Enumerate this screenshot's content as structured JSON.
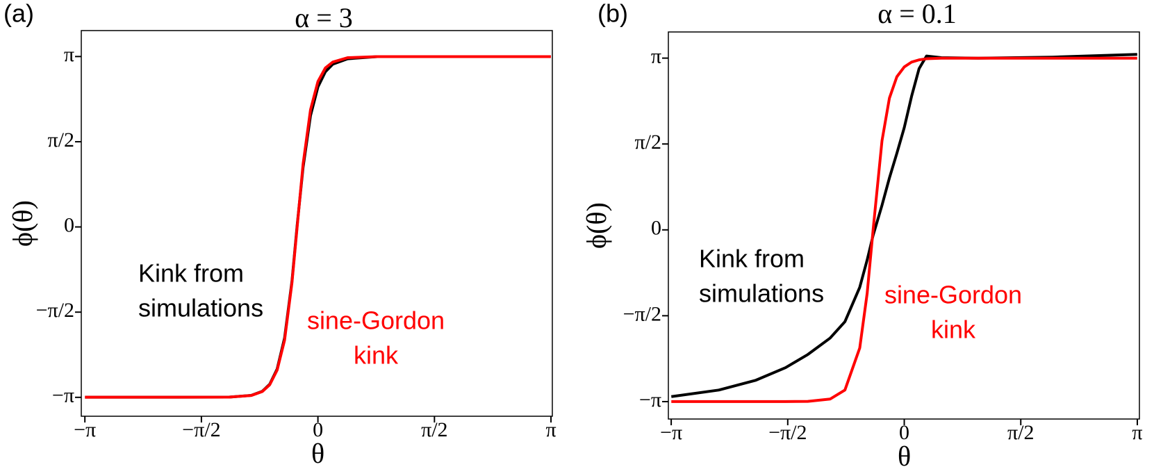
{
  "chart_data": [
    {
      "type": "line",
      "panel_label": "(a)",
      "title": "α = 3",
      "xlabel": "θ",
      "ylabel": "ϕ(θ)",
      "x": [
        -3.14,
        -2,
        -1.2,
        -0.9,
        -0.75,
        -0.65,
        -0.55,
        -0.45,
        -0.35,
        -0.28,
        -0.2,
        -0.1,
        0,
        0.1,
        0.2,
        0.4,
        0.8,
        1.5,
        3.14
      ],
      "series": [
        {
          "color": "#000000",
          "values": [
            -3.14,
            -3.14,
            -3.138,
            -3.105,
            -3.03,
            -2.9,
            -2.62,
            -2.05,
            -1.0,
            0.03,
            1.1,
            2.05,
            2.58,
            2.86,
            3.0,
            3.1,
            3.14,
            3.14,
            3.14
          ]
        },
        {
          "color": "#ff0000",
          "values": [
            -3.14,
            -3.14,
            -3.138,
            -3.108,
            -3.035,
            -2.91,
            -2.64,
            -2.09,
            -1.03,
            0,
            1.16,
            2.16,
            2.68,
            2.93,
            3.04,
            3.12,
            3.14,
            3.14,
            3.14
          ]
        }
      ],
      "annotations": [
        {
          "lines": [
            "Kink from",
            "simulations"
          ],
          "color": "#000000"
        },
        {
          "lines": [
            "sine-Gordon",
            "kink"
          ],
          "color": "#ff0000"
        }
      ],
      "xlim": [
        -3.19,
        3.16
      ],
      "ylim": [
        -3.49,
        3.62
      ],
      "xticks": [
        {
          "value": -3.1416,
          "label": "−π"
        },
        {
          "value": -1.5708,
          "label": "−π/2"
        },
        0,
        {
          "value": 1.5708,
          "label": "π/2"
        },
        {
          "value": 3.1416,
          "label": "π"
        }
      ],
      "yticks": [
        {
          "value": -3.1416,
          "label": "−π"
        },
        {
          "value": -1.5708,
          "label": "−π/2"
        },
        0,
        {
          "value": 1.5708,
          "label": "π/2"
        },
        {
          "value": 3.1416,
          "label": "π"
        }
      ]
    },
    {
      "type": "line",
      "panel_label": "(b)",
      "title": "α = 0.1",
      "xlabel": "θ",
      "ylabel": "ϕ(θ)",
      "x": [
        -3.14,
        -2.5,
        -2,
        -1.6,
        -1.3,
        -1,
        -0.8,
        -0.6,
        -0.5,
        -0.42,
        -0.3,
        -0.2,
        -0.1,
        0,
        0.1,
        0.2,
        0.3,
        0.5,
        1,
        2,
        3.14
      ],
      "series": [
        {
          "color": "#000000",
          "values": [
            -3.05,
            -2.93,
            -2.75,
            -2.52,
            -2.28,
            -1.98,
            -1.68,
            -1.05,
            -0.55,
            -0.1,
            0.45,
            0.95,
            1.4,
            1.87,
            2.45,
            2.95,
            3.18,
            3.15,
            3.14,
            3.16,
            3.21
          ]
        },
        {
          "color": "#ff0000",
          "values": [
            -3.14,
            -3.14,
            -3.14,
            -3.14,
            -3.137,
            -3.095,
            -2.93,
            -2.16,
            -1.16,
            0,
            1.63,
            2.41,
            2.8,
            2.98,
            3.07,
            3.11,
            3.13,
            3.14,
            3.14,
            3.14,
            3.14
          ]
        }
      ],
      "annotations": [
        {
          "lines": [
            "Kink from",
            "simulations"
          ],
          "color": "#000000"
        },
        {
          "lines": [
            "sine-Gordon",
            "kink"
          ],
          "color": "#ff0000"
        }
      ],
      "xlim": [
        -3.18,
        3.17
      ],
      "ylim": [
        -3.46,
        3.62
      ],
      "xticks": [
        {
          "value": -3.1416,
          "label": "−π"
        },
        {
          "value": -1.5708,
          "label": "−π/2"
        },
        0,
        {
          "value": 1.5708,
          "label": "π/2"
        },
        {
          "value": 3.1416,
          "label": "π"
        }
      ],
      "yticks": [
        {
          "value": -3.1416,
          "label": "−π"
        },
        {
          "value": -1.5708,
          "label": "−π/2"
        },
        0,
        {
          "value": 1.5708,
          "label": "π/2"
        },
        {
          "value": 3.1416,
          "label": "π"
        }
      ]
    }
  ]
}
